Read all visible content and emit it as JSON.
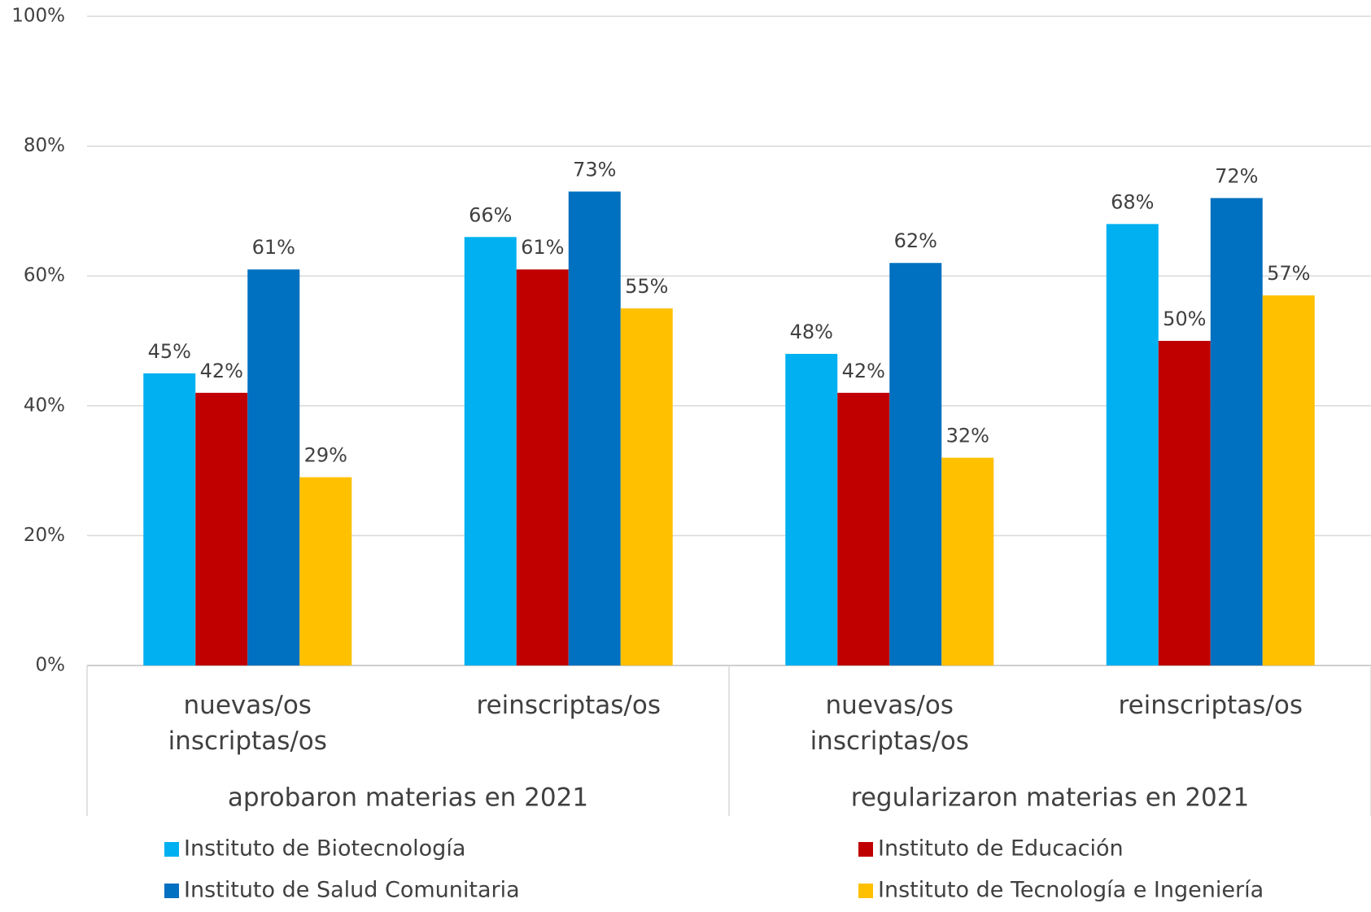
{
  "chart_data": {
    "type": "bar",
    "categories": [
      "nuevas/os inscriptas/os",
      "reinscriptas/os",
      "nuevas/os inscriptas/os",
      "reinscriptas/os"
    ],
    "groups": [
      "aprobaron materias en 2021",
      "regularizaron materias en 2021"
    ],
    "series": [
      {
        "name": "Instituto de Biotecnología",
        "color": "#00b0f0",
        "values": [
          45,
          66,
          48,
          68
        ],
        "value_labels": [
          "45%",
          "66%",
          "48%",
          "68%"
        ]
      },
      {
        "name": "Instituto de Educación",
        "color": "#c00000",
        "values": [
          42,
          61,
          42,
          50
        ],
        "value_labels": [
          "42%",
          "61%",
          "42%",
          "50%"
        ]
      },
      {
        "name": "Instituto de Salud Comunitaria",
        "color": "#0070c0",
        "values": [
          61,
          73,
          62,
          72
        ],
        "value_labels": [
          "61%",
          "73%",
          "62%",
          "72%"
        ]
      },
      {
        "name": "Instituto de Tecnología e Ingeniería",
        "color": "#ffc000",
        "values": [
          29,
          55,
          32,
          57
        ],
        "value_labels": [
          "29%",
          "55%",
          "32%",
          "57%"
        ]
      }
    ],
    "ylim": [
      0,
      100
    ],
    "yticks": [
      {
        "value": 0,
        "label": "0%"
      },
      {
        "value": 20,
        "label": "20%"
      },
      {
        "value": 40,
        "label": "40%"
      },
      {
        "value": 60,
        "label": "60%"
      },
      {
        "value": 80,
        "label": "80%"
      },
      {
        "value": 100,
        "label": "100%"
      }
    ],
    "grid": true,
    "legend": "bottom"
  }
}
